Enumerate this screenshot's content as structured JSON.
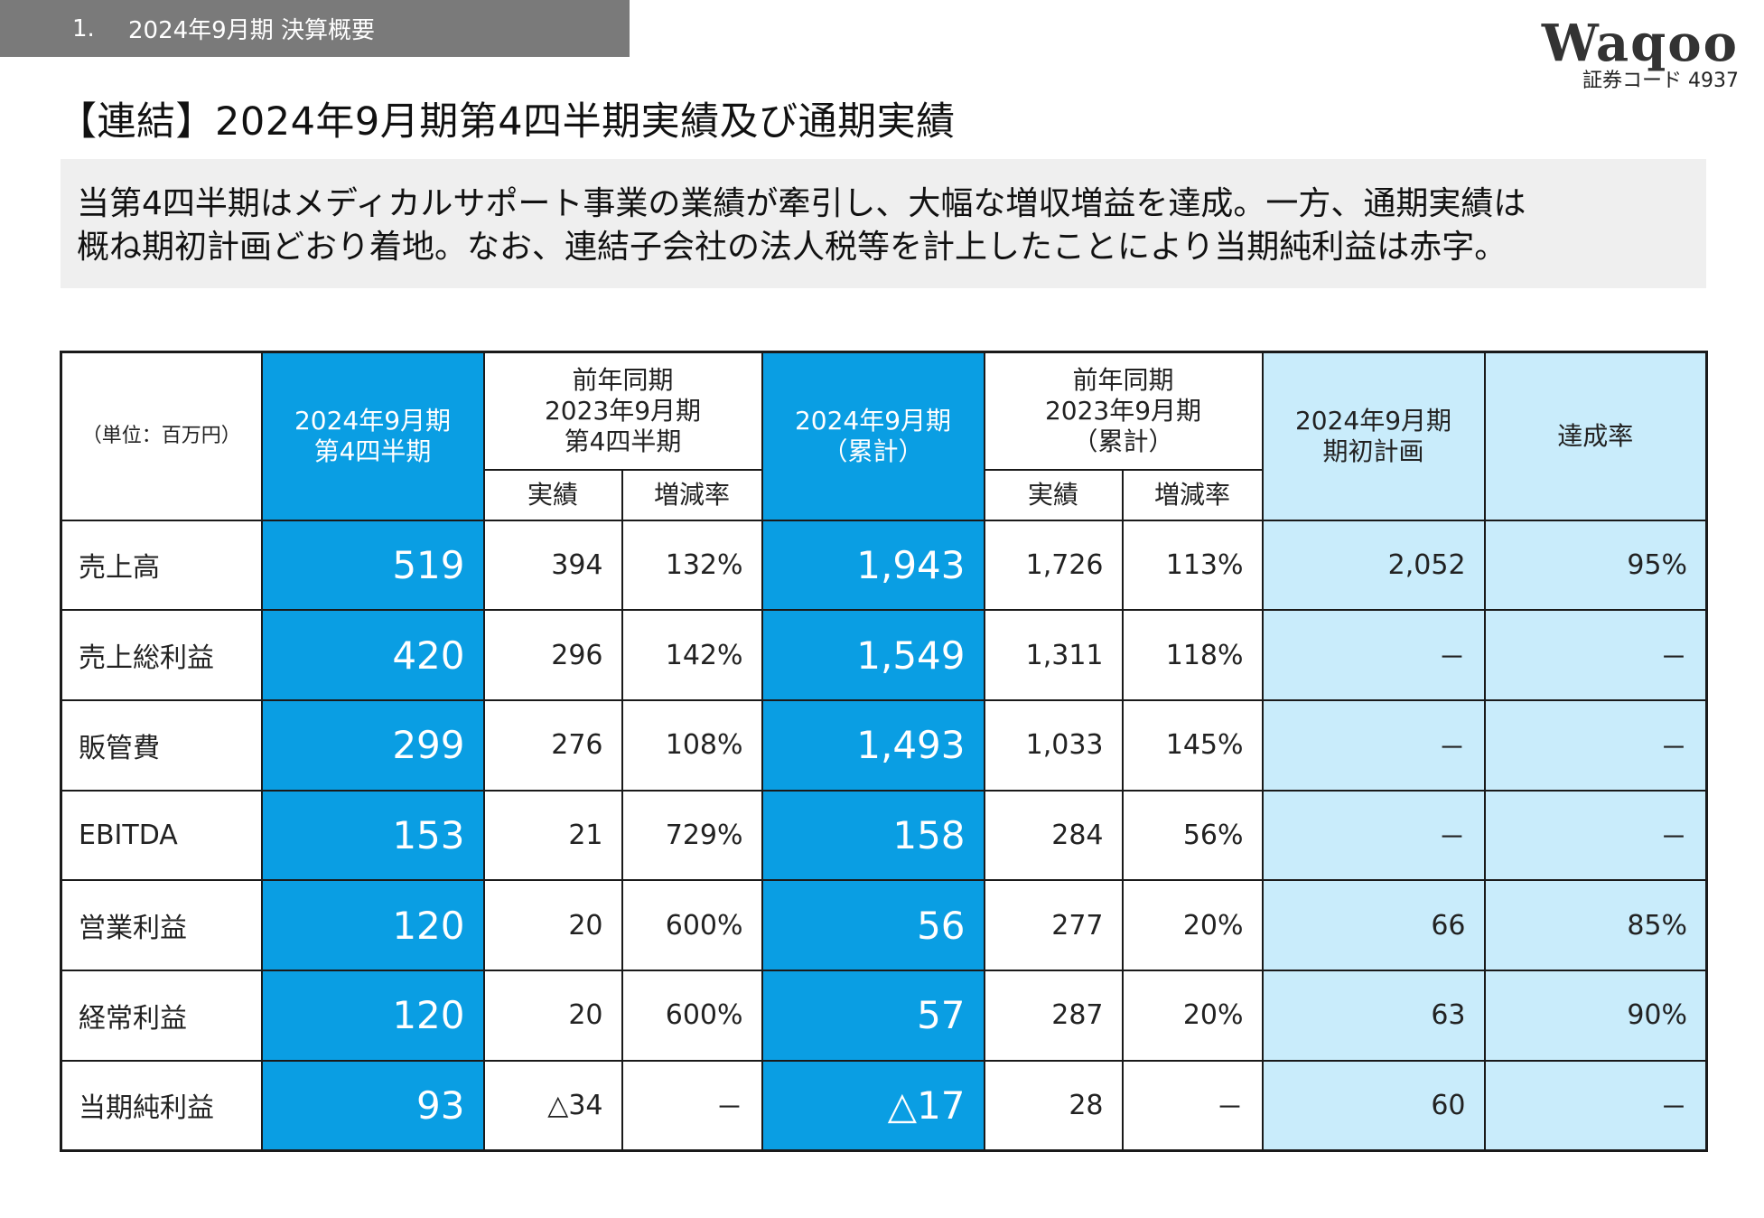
{
  "section": {
    "number": "1.",
    "title": "2024年9月期 決算概要"
  },
  "logo": {
    "name": "Waqoo",
    "code": "証券コード 4937"
  },
  "page_title": "【連結】2024年9月期第4四半期実績及び通期実績",
  "summary": {
    "line1": "当第4四半期はメディカルサポート事業の業績が牽引し、大幅な増収増益を達成。一方、通期実績は",
    "line2": "概ね期初計画どおり着地。なお、連結子会社の法人税等を計上したことにより当期純利益は赤字。"
  },
  "table": {
    "unit": "（単位：百万円）",
    "headers": {
      "q4_2024": "2024年9月期\n第4四半期",
      "prev_q4": "前年同期\n2023年9月期\n第4四半期",
      "cum_2024": "2024年9月期\n（累計）",
      "prev_cum": "前年同期\n2023年9月期\n（累計）",
      "plan": "2024年9月期\n期初計画",
      "rate": "達成率",
      "actual": "実績",
      "change": "増減率"
    },
    "rows": [
      {
        "label": "売上高",
        "q4": "519",
        "prev_q4": "394",
        "q4_rate": "132%",
        "cum": "1,943",
        "prev_cum": "1,726",
        "cum_rate": "113%",
        "plan": "2,052",
        "achieve": "95%"
      },
      {
        "label": "売上総利益",
        "q4": "420",
        "prev_q4": "296",
        "q4_rate": "142%",
        "cum": "1,549",
        "prev_cum": "1,311",
        "cum_rate": "118%",
        "plan": "－",
        "achieve": "－"
      },
      {
        "label": "販管費",
        "q4": "299",
        "prev_q4": "276",
        "q4_rate": "108%",
        "cum": "1,493",
        "prev_cum": "1,033",
        "cum_rate": "145%",
        "plan": "－",
        "achieve": "－"
      },
      {
        "label": "EBITDA",
        "q4": "153",
        "prev_q4": "21",
        "q4_rate": "729%",
        "cum": "158",
        "prev_cum": "284",
        "cum_rate": "56%",
        "plan": "－",
        "achieve": "－"
      },
      {
        "label": "営業利益",
        "q4": "120",
        "prev_q4": "20",
        "q4_rate": "600%",
        "cum": "56",
        "prev_cum": "277",
        "cum_rate": "20%",
        "plan": "66",
        "achieve": "85%"
      },
      {
        "label": "経常利益",
        "q4": "120",
        "prev_q4": "20",
        "q4_rate": "600%",
        "cum": "57",
        "prev_cum": "287",
        "cum_rate": "20%",
        "plan": "63",
        "achieve": "90%"
      },
      {
        "label": "当期純利益",
        "q4": "93",
        "prev_q4": "△34",
        "q4_rate": "－",
        "cum": "△17",
        "prev_cum": "28",
        "cum_rate": "－",
        "plan": "60",
        "achieve": "－"
      }
    ]
  },
  "colors": {
    "section_bar": "#7a7a7a",
    "highlight": "#0a9ee3",
    "plan_bg": "#c9ecfb",
    "summary_bg": "#efefef"
  }
}
